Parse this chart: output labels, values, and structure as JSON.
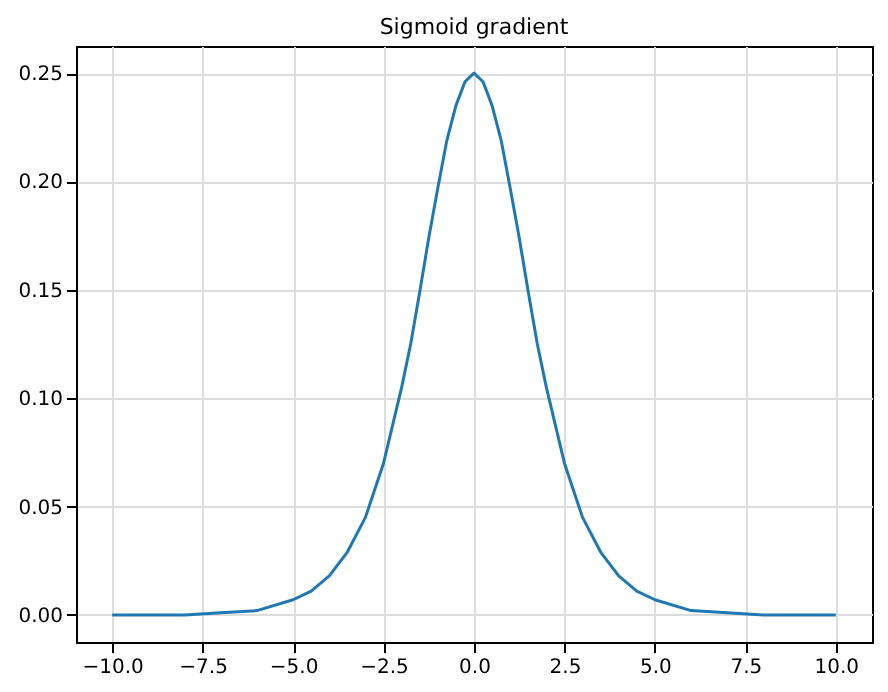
{
  "chart_data": {
    "type": "line",
    "title": "Sigmoid gradient",
    "series": [
      {
        "color": "#1f77b4",
        "x": [
          -10,
          -8,
          -7,
          -6,
          -5,
          -4.5,
          -4,
          -3.5,
          -3,
          -2.5,
          -2,
          -1.75,
          -1.5,
          -1.25,
          -1,
          -0.75,
          -0.5,
          -0.25,
          0,
          0.25,
          0.5,
          0.75,
          1,
          1.25,
          1.5,
          1.75,
          2,
          2.5,
          3,
          3.5,
          4,
          4.5,
          5,
          6,
          7,
          8,
          10
        ],
        "values": [
          0.0,
          0.0,
          0.001,
          0.002,
          0.007,
          0.011,
          0.018,
          0.029,
          0.045,
          0.07,
          0.105,
          0.125,
          0.149,
          0.174,
          0.197,
          0.219,
          0.235,
          0.246,
          0.25,
          0.246,
          0.235,
          0.219,
          0.197,
          0.174,
          0.149,
          0.125,
          0.105,
          0.07,
          0.045,
          0.029,
          0.018,
          0.011,
          0.007,
          0.002,
          0.001,
          0.0,
          0.0
        ]
      }
    ],
    "xlim": [
      -11,
      11
    ],
    "xticks": [
      {
        "value": -10,
        "label": "−10.0"
      },
      {
        "value": -7.5,
        "label": "−7.5"
      },
      {
        "value": -5,
        "label": "−5.0"
      },
      {
        "value": -2.5,
        "label": "−2.5"
      },
      {
        "value": 0,
        "label": "0.0"
      },
      {
        "value": 2.5,
        "label": "2.5"
      },
      {
        "value": 5,
        "label": "5.0"
      },
      {
        "value": 7.5,
        "label": "7.5"
      },
      {
        "value": 10,
        "label": "10.0"
      }
    ],
    "ylim": [
      -0.0125,
      0.2625
    ],
    "yticks": [
      {
        "value": 0,
        "label": "0.00"
      },
      {
        "value": 0.05,
        "label": "0.05"
      },
      {
        "value": 0.1,
        "label": "0.10"
      },
      {
        "value": 0.15,
        "label": "0.15"
      },
      {
        "value": 0.2,
        "label": "0.20"
      },
      {
        "value": 0.25,
        "label": "0.25"
      }
    ],
    "grid": true,
    "marker": "none",
    "line_style": "solid"
  }
}
